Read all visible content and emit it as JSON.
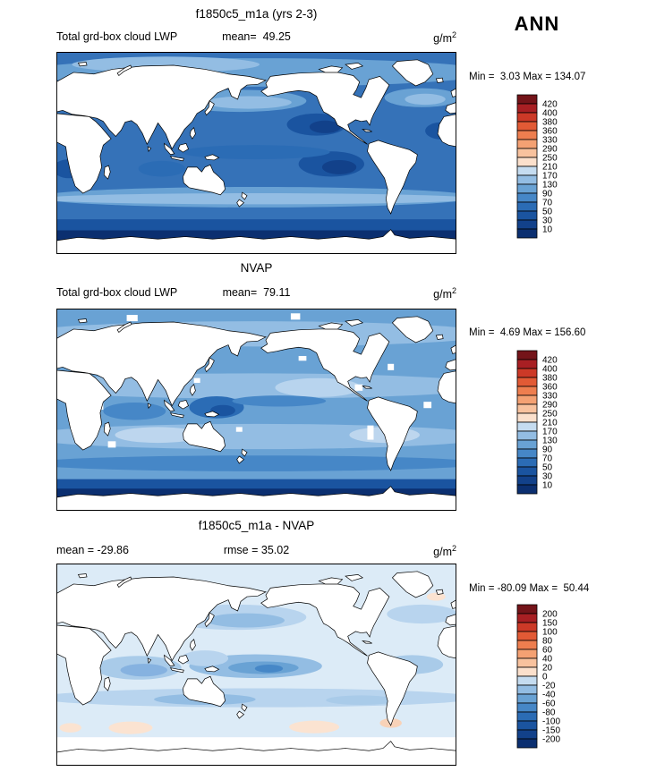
{
  "page": {
    "season": "ANN"
  },
  "panels": [
    {
      "title": "f1850c5_m1a (yrs 2-3)",
      "left_label": "Total grd-box cloud LWP",
      "center_label": "mean=  49.25",
      "unit": "g/m",
      "unit_sup": "2",
      "minmax": "Min =  3.03 Max = 134.07"
    },
    {
      "title": "NVAP",
      "left_label": "Total grd-box cloud LWP",
      "center_label": "mean=  79.11",
      "unit": "g/m",
      "unit_sup": "2",
      "minmax": "Min =  4.69 Max = 156.60"
    },
    {
      "title": "f1850c5_m1a - NVAP",
      "left_label": "mean = -29.86",
      "center_label": "rmse = 35.02",
      "unit": "g/m",
      "unit_sup": "2",
      "minmax": "Min = -80.09 Max =  50.44"
    }
  ],
  "chart_data": [
    {
      "type": "heatmap",
      "subtype": "global-latlon-filled-contour-map",
      "title": "f1850c5_m1a (yrs 2-3)",
      "variable": "Total grd-box cloud LWP",
      "season": "ANN",
      "units": "g/m^2",
      "mean": 49.25,
      "min": 3.03,
      "max": 134.07,
      "projection": "equirectangular, Pacific-centered (lon 0-360E), land masked white",
      "levels": [
        10,
        30,
        50,
        70,
        90,
        130,
        170,
        210,
        250,
        290,
        330,
        360,
        380,
        400,
        420
      ],
      "colors_low_to_high": [
        "#0b2f70",
        "#12418a",
        "#1a54a0",
        "#2b6cb5",
        "#4687c7",
        "#69a2d4",
        "#93bde3",
        "#c5dcf0",
        "#fbe0cc",
        "#f8c29e",
        "#f4a173",
        "#ee7e4f",
        "#e25a35",
        "#cc3927",
        "#a81f23",
        "#741419"
      ],
      "legend_position": "right vertical colorbar"
    },
    {
      "type": "heatmap",
      "subtype": "global-latlon-filled-contour-map",
      "title": "NVAP",
      "variable": "Total grd-box cloud LWP",
      "season": "ANN",
      "units": "g/m^2",
      "mean": 79.11,
      "min": 4.69,
      "max": 156.6,
      "projection": "equirectangular, Pacific-centered (lon 0-360E), land masked white, coastal grid boxes missing (white)",
      "levels": [
        10,
        30,
        50,
        70,
        90,
        130,
        170,
        210,
        250,
        290,
        330,
        360,
        380,
        400,
        420
      ],
      "colors_low_to_high": [
        "#0b2f70",
        "#12418a",
        "#1a54a0",
        "#2b6cb5",
        "#4687c7",
        "#69a2d4",
        "#93bde3",
        "#c5dcf0",
        "#fbe0cc",
        "#f8c29e",
        "#f4a173",
        "#ee7e4f",
        "#e25a35",
        "#cc3927",
        "#a81f23",
        "#741419"
      ],
      "legend_position": "right vertical colorbar"
    },
    {
      "type": "heatmap",
      "subtype": "global-latlon-difference-map",
      "title": "f1850c5_m1a - NVAP",
      "variable": "Total grd-box cloud LWP difference",
      "season": "ANN",
      "units": "g/m^2",
      "mean": -29.86,
      "rmse": 35.02,
      "min": -80.09,
      "max": 50.44,
      "projection": "equirectangular, Pacific-centered (lon 0-360E), land masked white, high southern latitudes missing (white)",
      "levels": [
        -200,
        -150,
        -100,
        -80,
        -60,
        -40,
        -20,
        0,
        20,
        40,
        60,
        80,
        100,
        150,
        200
      ],
      "colors_low_to_high": [
        "#0b2f70",
        "#12418a",
        "#1a54a0",
        "#2b6cb5",
        "#4687c7",
        "#69a2d4",
        "#93bde3",
        "#c5dcf0",
        "#fbe0cc",
        "#f8c29e",
        "#f4a173",
        "#ee7e4f",
        "#e25a35",
        "#cc3927",
        "#a81f23",
        "#741419"
      ],
      "legend_position": "right vertical colorbar"
    }
  ]
}
